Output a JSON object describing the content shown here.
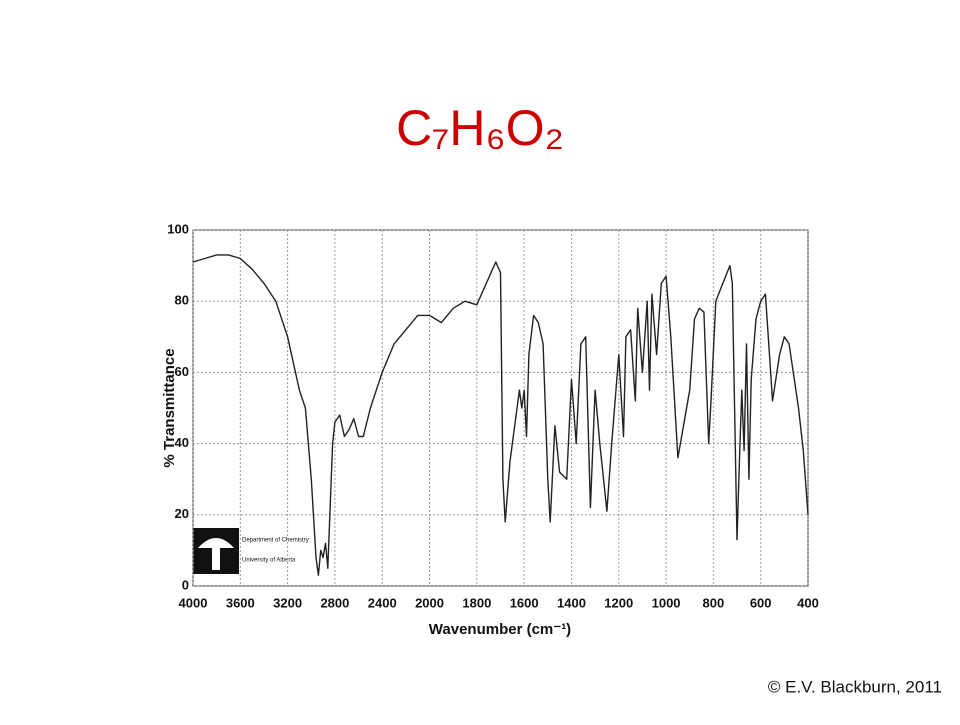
{
  "chart_data": {
    "type": "line",
    "title": "C₇H₆O₂",
    "x_label": "Wavenumber (cm⁻¹)",
    "y_label": "% Transmittance",
    "logo_lines": [
      "Department of Chemistry",
      "University of Alberta"
    ],
    "credit": "© E.V. Blackburn, 2011",
    "color": "#222222",
    "grid": true,
    "xlim": [
      4000,
      400
    ],
    "xticks": [
      4000,
      3600,
      3200,
      2800,
      2400,
      2000,
      1800,
      1600,
      1400,
      1200,
      1000,
      800,
      600,
      400
    ],
    "ylim": [
      0,
      100
    ],
    "yticks": [
      0,
      20,
      40,
      60,
      80,
      100
    ],
    "x": [
      4000,
      3900,
      3800,
      3700,
      3600,
      3500,
      3400,
      3300,
      3200,
      3100,
      3050,
      3000,
      2960,
      2940,
      2920,
      2900,
      2880,
      2860,
      2820,
      2800,
      2760,
      2720,
      2680,
      2640,
      2600,
      2560,
      2500,
      2400,
      2300,
      2200,
      2100,
      2000,
      1950,
      1900,
      1850,
      1800,
      1760,
      1740,
      1720,
      1700,
      1690,
      1680,
      1660,
      1620,
      1610,
      1600,
      1590,
      1580,
      1560,
      1540,
      1520,
      1500,
      1490,
      1470,
      1450,
      1420,
      1400,
      1380,
      1360,
      1340,
      1320,
      1300,
      1280,
      1250,
      1230,
      1200,
      1180,
      1170,
      1150,
      1130,
      1120,
      1100,
      1080,
      1070,
      1060,
      1040,
      1020,
      1000,
      980,
      950,
      900,
      880,
      860,
      840,
      820,
      810,
      790,
      760,
      730,
      720,
      700,
      690,
      680,
      670,
      660,
      650,
      640,
      620,
      600,
      580,
      560,
      550,
      520,
      500,
      480,
      440,
      420,
      400
    ],
    "values": [
      91,
      92,
      93,
      93,
      92,
      89,
      85,
      80,
      70,
      55,
      50,
      30,
      8,
      3,
      10,
      8,
      12,
      5,
      40,
      46,
      48,
      42,
      44,
      47,
      42,
      42,
      50,
      60,
      68,
      72,
      76,
      76,
      74,
      78,
      80,
      79,
      85,
      88,
      91,
      88,
      30,
      18,
      35,
      55,
      50,
      55,
      42,
      65,
      76,
      74,
      68,
      30,
      18,
      45,
      32,
      30,
      58,
      40,
      68,
      70,
      22,
      55,
      40,
      21,
      40,
      65,
      42,
      70,
      72,
      52,
      78,
      60,
      80,
      55,
      82,
      65,
      85,
      87,
      70,
      36,
      55,
      75,
      78,
      77,
      40,
      52,
      80,
      85,
      90,
      85,
      13,
      35,
      55,
      38,
      68,
      30,
      58,
      75,
      80,
      82,
      62,
      52,
      65,
      70,
      68,
      50,
      38,
      20
    ]
  }
}
